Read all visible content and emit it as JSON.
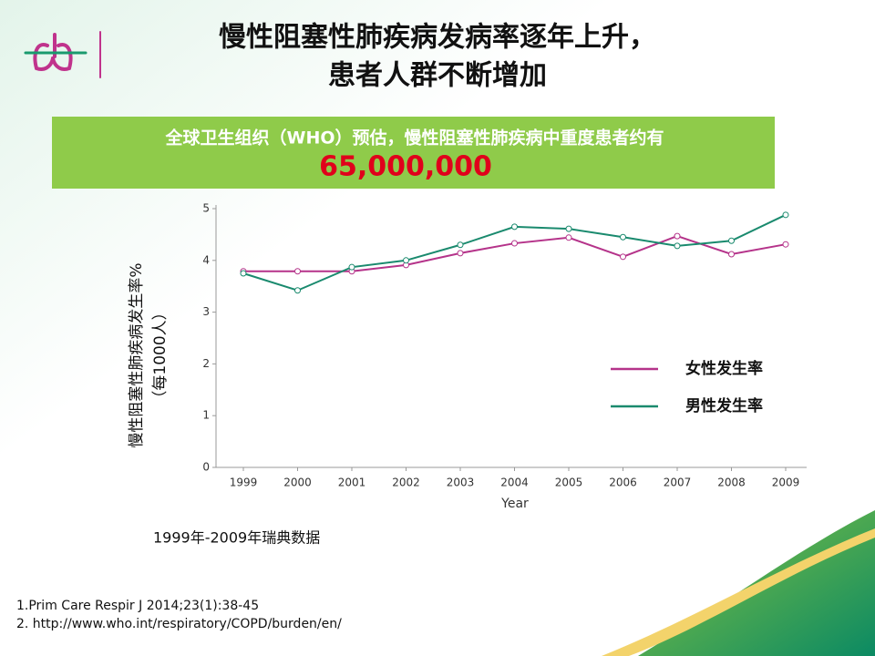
{
  "header": {
    "title_lines": [
      "慢性阻塞性肺疾病发病率逐年上升，",
      "患者人群不断增加"
    ]
  },
  "banner": {
    "text": "全球卫生组织（WHO）预估，慢性阻塞性肺疾病中重度患者约有",
    "value": "65,000,000"
  },
  "chart_data": {
    "type": "line",
    "y_label_lines": [
      "慢性阻塞性肺疾病发生率%",
      "（每1000人）"
    ],
    "x_label": "Year",
    "categories": [
      "1999",
      "2000",
      "2001",
      "2002",
      "2003",
      "2004",
      "2005",
      "2006",
      "2007",
      "2008",
      "2009"
    ],
    "series": [
      {
        "name": "女性发生率",
        "color": "#b5338a",
        "values": [
          3.79,
          3.79,
          3.79,
          3.91,
          4.14,
          4.33,
          4.44,
          4.07,
          4.47,
          4.12,
          4.31
        ]
      },
      {
        "name": "男性发生率",
        "color": "#1a8a6e",
        "values": [
          3.75,
          3.42,
          3.87,
          4.0,
          4.3,
          4.65,
          4.61,
          4.45,
          4.28,
          4.38,
          4.88
        ]
      }
    ],
    "ylim": [
      0,
      5
    ],
    "yticks": [
      0,
      1,
      2,
      3,
      4,
      5
    ],
    "grid": false,
    "legend": "right"
  },
  "caption": "1999年-2009年瑞典数据",
  "references": [
    "1.Prim Care Respir J 2014;23(1):38-45",
    "2. http://www.who.int/respiratory/COPD/burden/en/"
  ]
}
